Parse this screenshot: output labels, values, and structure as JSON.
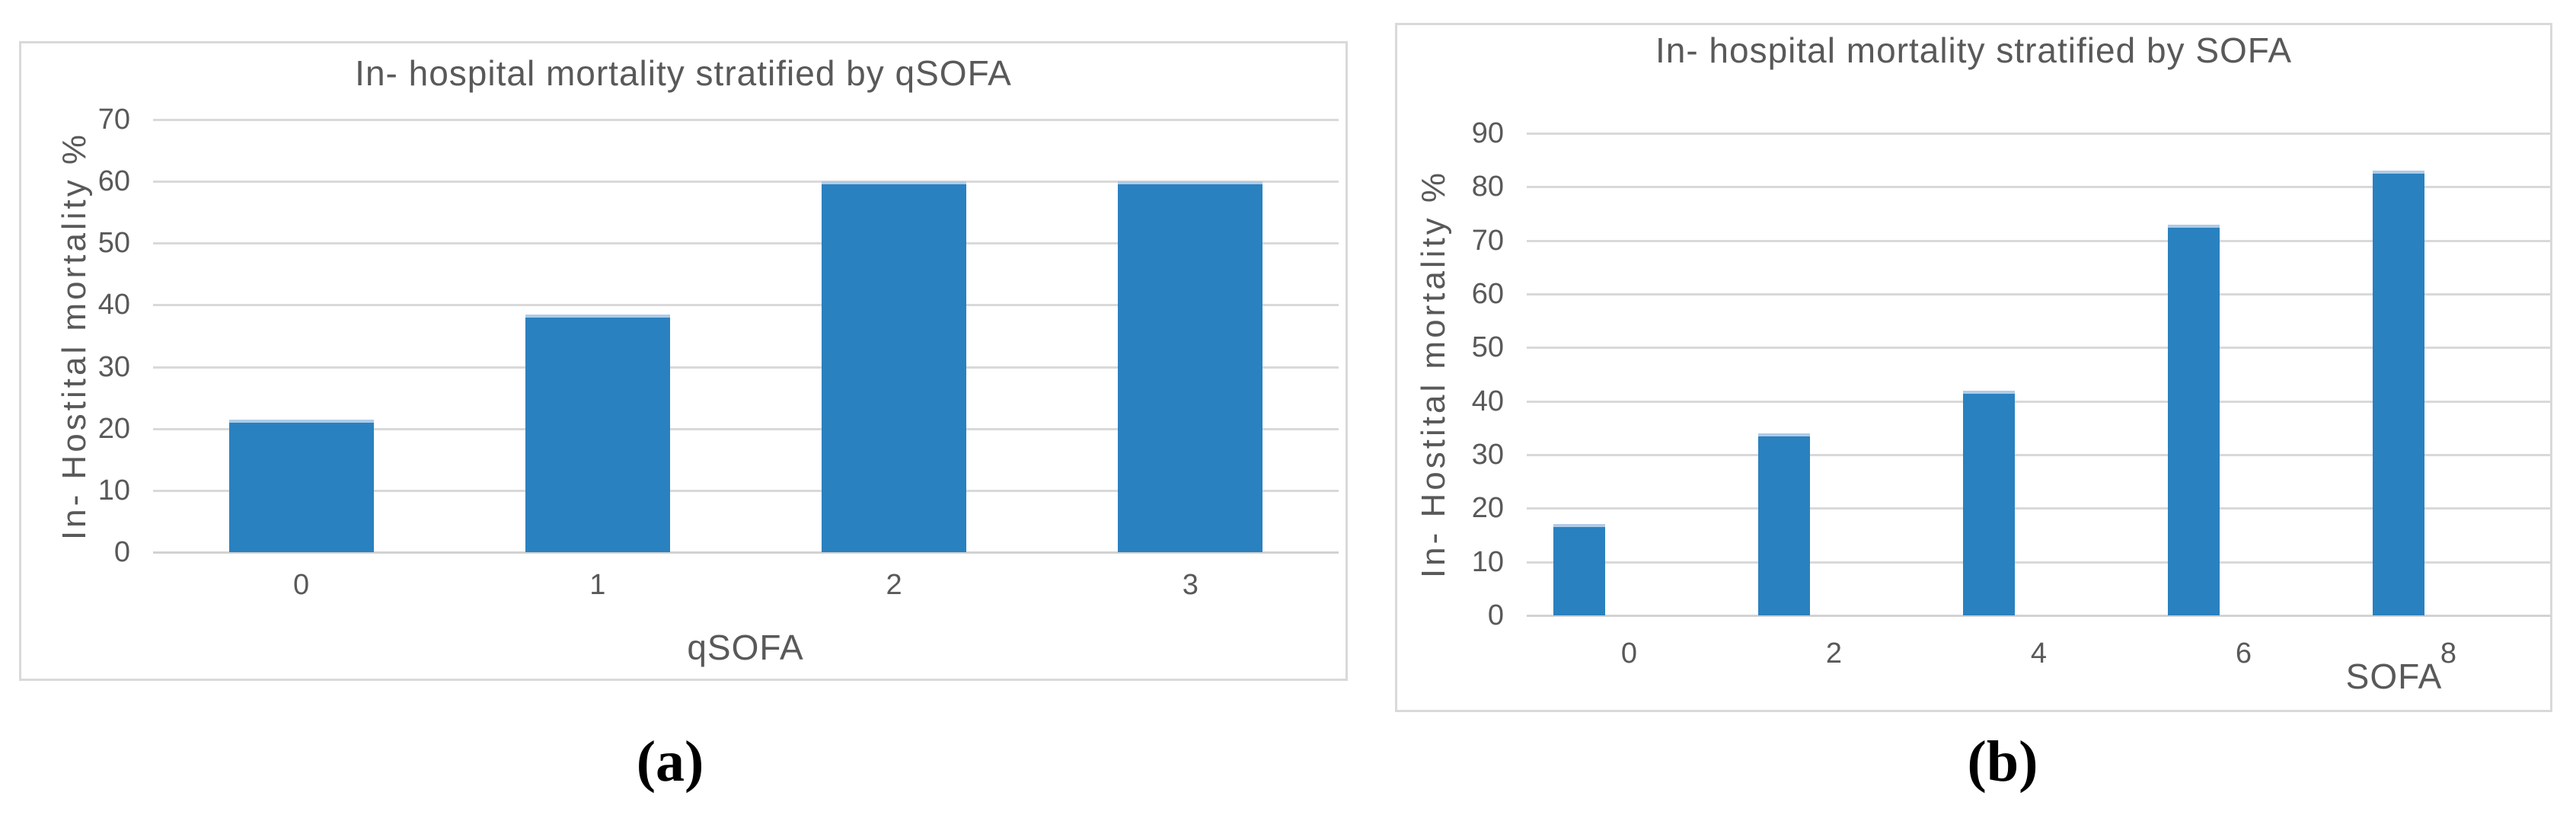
{
  "figure": {
    "captions": {
      "a": "(a)",
      "b": "(b)"
    }
  },
  "colors": {
    "bar": "#2A81BF",
    "bar_top_edge": "#AECBE8",
    "gridline": "#D9D9D9",
    "panel_border": "#D9D9D9",
    "axis_text": "#595959",
    "caption_text": "#000000",
    "background": "#FFFFFF"
  },
  "chart_data": [
    {
      "type": "bar",
      "title": "In- hospital mortality stratified by qSOFA",
      "xlabel": "qSOFA",
      "ylabel": "In- Hostital mortality %",
      "categories": [
        "0",
        "1",
        "2",
        "3"
      ],
      "values": [
        21.5,
        38.5,
        60,
        60
      ],
      "yticks": [
        70,
        60,
        50,
        40,
        30,
        20,
        10,
        0
      ],
      "ylim": [
        0,
        70
      ],
      "grid": true,
      "legend": "none"
    },
    {
      "type": "bar",
      "title": "In- hospital mortality stratified by SOFA",
      "xlabel": "SOFA",
      "ylabel": "In- Hostital mortality %",
      "categories": [
        "0",
        "2",
        "4",
        "6",
        "8"
      ],
      "values": [
        17,
        34,
        42,
        73,
        83
      ],
      "yticks": [
        90,
        80,
        70,
        60,
        50,
        40,
        30,
        20,
        10,
        0
      ],
      "ylim": [
        0,
        90
      ],
      "grid": true,
      "legend": "none"
    }
  ]
}
